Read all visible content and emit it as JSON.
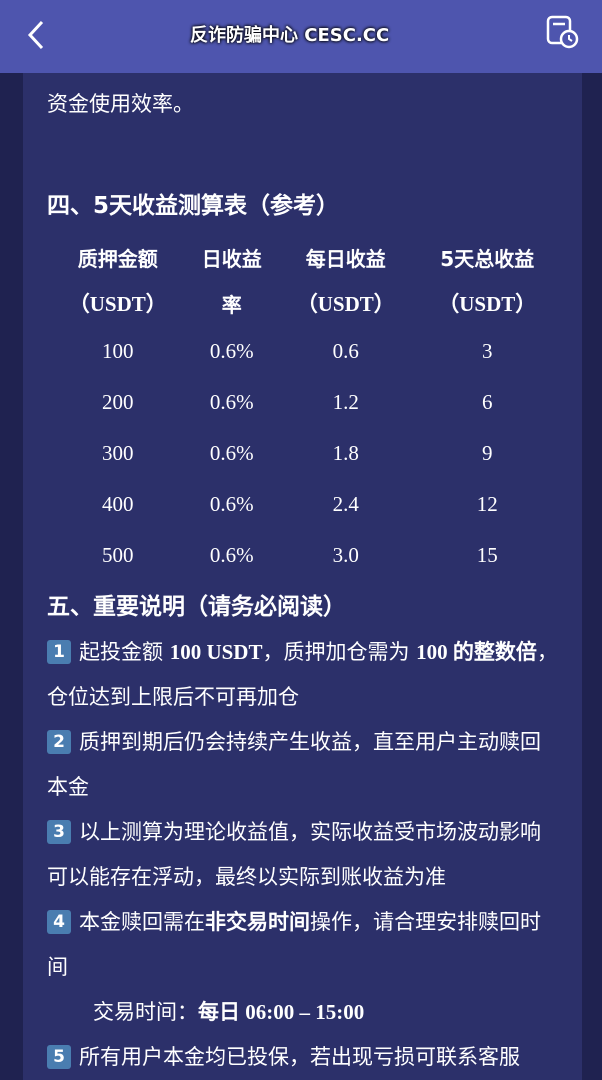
{
  "header": {
    "back_icon": "chevron-left-icon",
    "history_icon": "calendar-clock-icon"
  },
  "intro_tail": "资金使用效率。",
  "section4": {
    "title": "四、5天收益测算表（参考）",
    "headers": [
      [
        "质押金额",
        "（USDT）"
      ],
      [
        "日收益",
        "率"
      ],
      [
        "每日收益",
        "（USDT）"
      ],
      [
        "5天总收益",
        "（USDT）"
      ]
    ],
    "rows": [
      [
        "100",
        "0.6%",
        "0.6",
        "3"
      ],
      [
        "200",
        "0.6%",
        "1.2",
        "6"
      ],
      [
        "300",
        "0.6%",
        "1.8",
        "9"
      ],
      [
        "400",
        "0.6%",
        "2.4",
        "12"
      ],
      [
        "500",
        "0.6%",
        "3.0",
        "15"
      ]
    ]
  },
  "section5": {
    "title": "五、重要说明（请务必阅读）",
    "items": [
      {
        "num": "1",
        "pre": "起投金额 ",
        "b1": "100 USDT",
        "mid": "，质押加仓需为 ",
        "b2": "100 的整数倍",
        "post": "，仓位达到上限后不可再加仓"
      },
      {
        "num": "2",
        "text": "质押到期后仍会持续产生收益，直至用户主动赎回本金"
      },
      {
        "num": "3",
        "text": "以上测算为理论收益值，实际收益受市场波动影响可以能存在浮动，最终以实际到账收益为准"
      },
      {
        "num": "4",
        "pre": "本金赎回需在",
        "b1": "非交易时间",
        "post": "操作，请合理安排赎回时间"
      },
      {
        "num": "5",
        "text": "所有用户本金均已投保，若出现亏损可联系客服"
      }
    ],
    "trade_label": "交易时间：",
    "trade_value": "每日 06:00 – 15:00"
  },
  "watermark": "反诈防骗中心 CESC.CC"
}
